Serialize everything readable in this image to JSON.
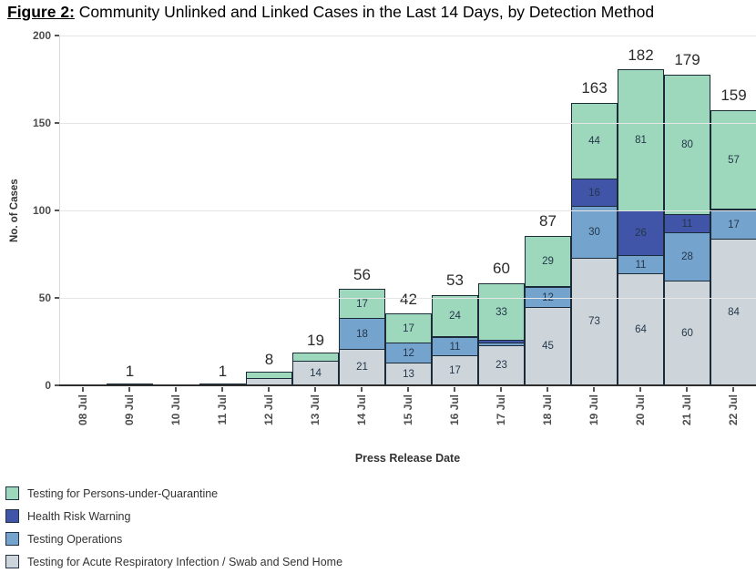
{
  "title": {
    "prefix": "Figure 2:",
    "text": " Community Unlinked and Linked Cases in the Last 14 Days, by Detection Method"
  },
  "chart_data": {
    "type": "bar",
    "stacked": true,
    "title": "Community Unlinked and Linked Cases in the Last 14 Days, by Detection Method",
    "xlabel": "Press Release Date",
    "ylabel": "No. of Cases",
    "ylim": [
      0,
      200
    ],
    "yticks": [
      0,
      50,
      100,
      150,
      200
    ],
    "grid": true,
    "legend_position": "bottom-left",
    "label_min_value": 11,
    "categories": [
      "08 Jul",
      "09 Jul",
      "10 Jul",
      "11 Jul",
      "12 Jul",
      "13 Jul",
      "14 Jul",
      "15 Jul",
      "16 Jul",
      "17 Jul",
      "18 Jul",
      "19 Jul",
      "20 Jul",
      "21 Jul",
      "22 Jul"
    ],
    "series": [
      {
        "name": "Testing for Acute Respiratory Infection / Swab and Send Home",
        "key": "ari",
        "color": "#CDD5DB",
        "values": [
          0,
          0,
          0,
          1,
          4,
          14,
          21,
          13,
          17,
          23,
          45,
          73,
          64,
          60,
          84
        ]
      },
      {
        "name": "Testing Operations",
        "key": "ops",
        "color": "#74A3CD",
        "values": [
          0,
          1,
          0,
          0,
          0,
          0,
          18,
          12,
          11,
          2,
          12,
          30,
          11,
          28,
          17
        ]
      },
      {
        "name": "Health Risk Warning",
        "key": "hrw",
        "color": "#4055A8",
        "values": [
          0,
          0,
          0,
          0,
          0,
          0,
          0,
          0,
          1,
          2,
          1,
          16,
          26,
          11,
          1
        ]
      },
      {
        "name": "Testing for Persons-under-Quarantine",
        "key": "puq",
        "color": "#9ED8BC",
        "values": [
          0,
          0,
          0,
          0,
          4,
          5,
          17,
          17,
          24,
          33,
          29,
          44,
          81,
          80,
          57
        ]
      }
    ],
    "totals": [
      0,
      1,
      0,
      1,
      8,
      19,
      56,
      42,
      53,
      60,
      87,
      163,
      182,
      179,
      159
    ]
  },
  "legend": {
    "items": [
      {
        "label": "Testing for Persons-under-Quarantine",
        "key": "puq",
        "color": "#9ED8BC"
      },
      {
        "label": "Health Risk Warning",
        "key": "hrw",
        "color": "#4055A8"
      },
      {
        "label": "Testing Operations",
        "key": "ops",
        "color": "#74A3CD"
      },
      {
        "label": "Testing for Acute Respiratory Infection / Swab and Send Home",
        "key": "ari",
        "color": "#CDD5DB"
      }
    ]
  }
}
